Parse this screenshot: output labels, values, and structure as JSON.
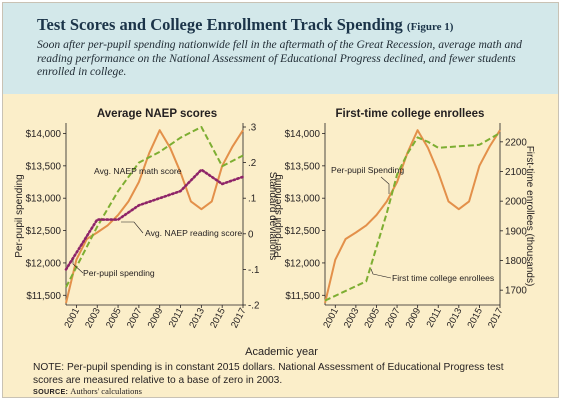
{
  "figure": {
    "title": "Test Scores and College Enrollment Track Spending",
    "figure_ref": "(Figure 1)",
    "subtitle": "Soon after per-pupil spending nationwide fell in the aftermath of the Great Recession, average math and reading performance on the National Assessment of Educational Progress declined, and fewer students enrolled in college.",
    "xlabel": "Academic year",
    "note": "NOTE: Per-pupil spending is in constant 2015 dollars. National Assessment of Educational Progress test scores are measured relative to a base of zero in 2003.",
    "source_label": "SOURCE:",
    "source_text": "Authors' calculations"
  },
  "colors": {
    "header_bg": "#d3e8ea",
    "panel_bg": "#fbeec9",
    "spending": "#e3904a",
    "math": "#7dae32",
    "reading": "#8e2468",
    "college": "#7dae32"
  },
  "chart_data": [
    {
      "type": "line",
      "title": "Average NAEP scores",
      "ylabel": "Per-pupil spending",
      "y2label": "Standard deviations",
      "xlabel": "Academic year",
      "x_ticks": [
        "2001",
        "2003",
        "2005",
        "2007",
        "2009",
        "2011",
        "2013",
        "2015",
        "2017"
      ],
      "ylim": [
        11350,
        14100
      ],
      "yticks": [
        "$11,500",
        "$12,000",
        "$12,500",
        "$13,000",
        "$13,500",
        "$14,000"
      ],
      "ytick_values": [
        11500,
        12000,
        12500,
        13000,
        13500,
        14000
      ],
      "y2lim": [
        -0.2,
        0.3
      ],
      "y2ticks": [
        "-.2",
        "-.1",
        "0",
        ".1",
        ".2",
        ".3"
      ],
      "y2tick_values": [
        -0.2,
        -0.1,
        0,
        0.1,
        0.2,
        0.3
      ],
      "series": [
        {
          "name": "Per-pupil spending",
          "axis": "left",
          "style": "solid",
          "x": [
            2000,
            2001,
            2002,
            2003,
            2004,
            2005,
            2006,
            2007,
            2008,
            2009,
            2010,
            2011,
            2012,
            2013,
            2014,
            2015,
            2016,
            2017
          ],
          "y": [
            11380,
            12050,
            12370,
            12470,
            12580,
            12740,
            12950,
            13250,
            13700,
            14050,
            13780,
            13400,
            12950,
            12830,
            12950,
            13500,
            13800,
            14050
          ]
        },
        {
          "name": "Avg. NAEP math score",
          "axis": "right",
          "style": "dashed",
          "x": [
            2000,
            2003,
            2005,
            2007,
            2009,
            2011,
            2013,
            2015,
            2017
          ],
          "y": [
            -0.15,
            0.02,
            0.12,
            0.2,
            0.23,
            0.27,
            0.3,
            0.19,
            0.22
          ]
        },
        {
          "name": "Avg. NAEP reading score",
          "axis": "right",
          "style": "dotted",
          "x": [
            2000,
            2003,
            2005,
            2007,
            2009,
            2011,
            2013,
            2015,
            2017
          ],
          "y": [
            -0.1,
            0.04,
            0.04,
            0.08,
            0.1,
            0.12,
            0.18,
            0.14,
            0.16
          ]
        }
      ],
      "annotations": [
        "Avg. NAEP math score",
        "Avg. NAEP reading score",
        "Per-pupil spending"
      ]
    },
    {
      "type": "line",
      "title": "First-time college enrollees",
      "ylabel": "Per-pupil spending",
      "y2label": "First-time enrollees (thousands)",
      "xlabel": "Academic year",
      "x_ticks": [
        "2001",
        "2003",
        "2005",
        "2007",
        "2009",
        "2011",
        "2013",
        "2015",
        "2017"
      ],
      "ylim": [
        11350,
        14100
      ],
      "yticks": [
        "$11,500",
        "$12,000",
        "$12,500",
        "$13,000",
        "$13,500",
        "$14,000"
      ],
      "ytick_values": [
        11500,
        12000,
        12500,
        13000,
        13500,
        14000
      ],
      "y2lim": [
        1650,
        2250
      ],
      "y2ticks": [
        "1700",
        "1800",
        "1900",
        "2000",
        "2100",
        "2200"
      ],
      "y2tick_values": [
        1700,
        1800,
        1900,
        2000,
        2100,
        2200
      ],
      "series": [
        {
          "name": "Per-pupil Spending",
          "axis": "left",
          "style": "solid",
          "x": [
            2000,
            2001,
            2002,
            2003,
            2004,
            2005,
            2006,
            2007,
            2008,
            2009,
            2010,
            2011,
            2012,
            2013,
            2014,
            2015,
            2016,
            2017
          ],
          "y": [
            11380,
            12050,
            12370,
            12470,
            12580,
            12740,
            12950,
            13250,
            13700,
            14050,
            13780,
            13400,
            12950,
            12830,
            12950,
            13500,
            13800,
            14050
          ]
        },
        {
          "name": "First time college enrollees",
          "axis": "right",
          "style": "dashed",
          "x": [
            2000,
            2004,
            2005,
            2006,
            2007,
            2008,
            2009,
            2010,
            2011,
            2013,
            2015,
            2017
          ],
          "y": [
            1665,
            1730,
            1845,
            1960,
            2090,
            2160,
            2215,
            2200,
            2180,
            2185,
            2190,
            2230
          ]
        }
      ],
      "annotations": [
        "Per-pupil Spending",
        "First time college enrollees"
      ]
    }
  ]
}
